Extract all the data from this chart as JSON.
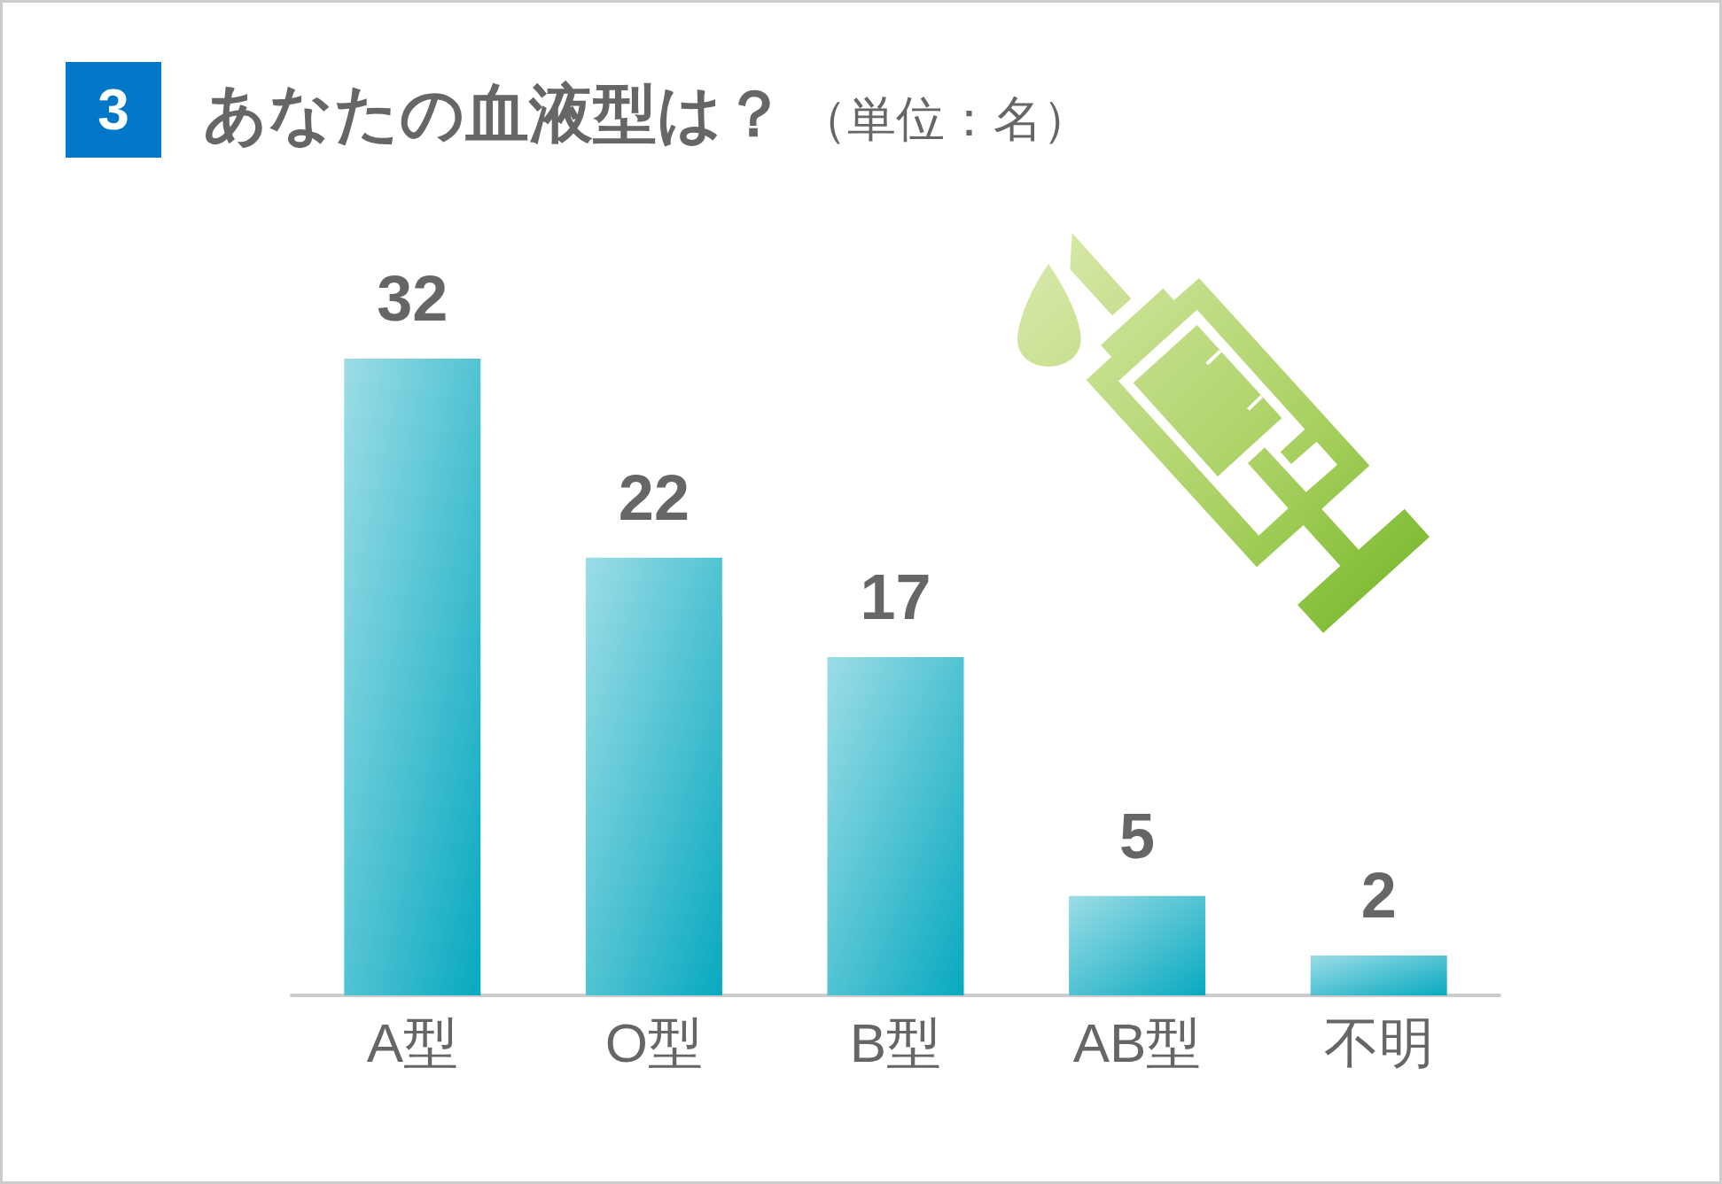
{
  "chart_data": {
    "type": "bar",
    "title": "あなたの血液型は？",
    "subtitle": "（単位：名）",
    "annotations": [
      "3"
    ],
    "categories": [
      "A型",
      "O型",
      "B型",
      "AB型",
      "不明"
    ],
    "values": [
      32,
      22,
      17,
      5,
      2
    ],
    "color": "#08a9c0",
    "data_labels": true,
    "grid": false,
    "tick_labels": "x"
  }
}
